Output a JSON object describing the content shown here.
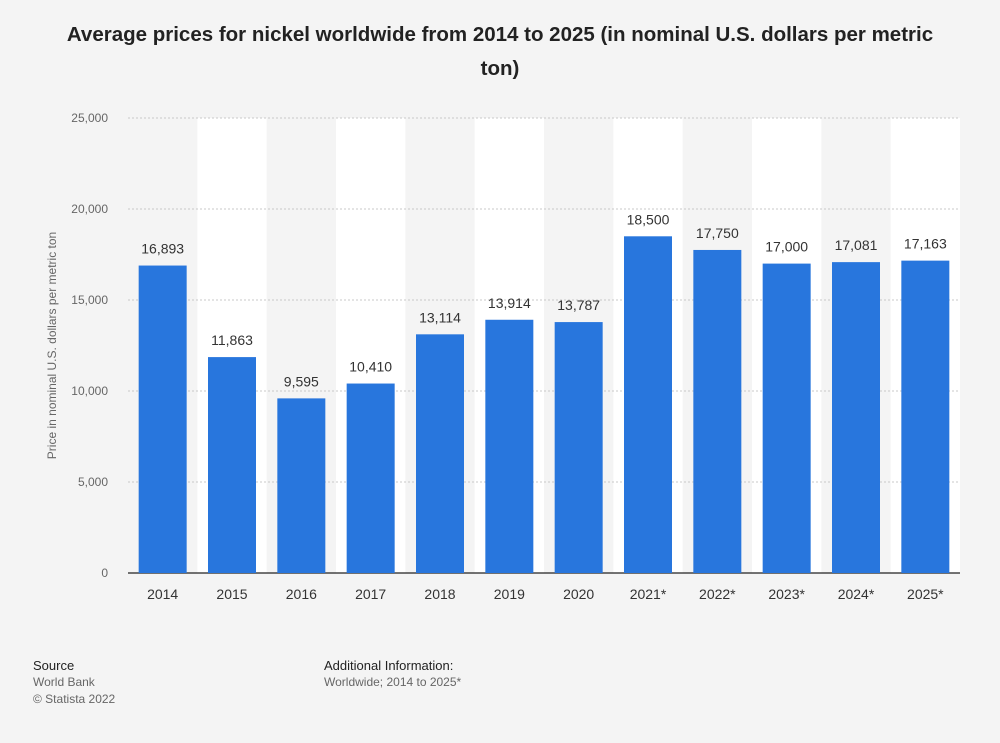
{
  "chart_data": {
    "type": "bar",
    "title": "Average prices for nickel worldwide from 2014 to 2025 (in nominal U.S. dollars per metric ton)",
    "ylabel": "Price in nominal U.S. dollars per metric ton",
    "xlabel": "",
    "categories": [
      "2014",
      "2015",
      "2016",
      "2017",
      "2018",
      "2019",
      "2020",
      "2021*",
      "2022*",
      "2023*",
      "2024*",
      "2025*"
    ],
    "values": [
      16893,
      11863,
      9595,
      10410,
      13114,
      13914,
      13787,
      18500,
      17750,
      17000,
      17081,
      17163
    ],
    "value_labels": [
      "16,893",
      "11,863",
      "9,595",
      "10,410",
      "13,114",
      "13,914",
      "13,787",
      "18,500",
      "17,750",
      "17,000",
      "17,081",
      "17,163"
    ],
    "ylim": [
      0,
      25000
    ],
    "yticks": [
      0,
      5000,
      10000,
      15000,
      20000,
      25000
    ],
    "ytick_labels": [
      "0",
      "5,000",
      "10,000",
      "15,000",
      "20,000",
      "25,000"
    ],
    "grid": true,
    "bar_color": "#2876dd"
  },
  "source": {
    "label": "Source",
    "lines": [
      "World Bank",
      "© Statista 2022"
    ]
  },
  "additional_info": {
    "label": "Additional Information:",
    "text": "Worldwide; 2014 to 2025*"
  }
}
